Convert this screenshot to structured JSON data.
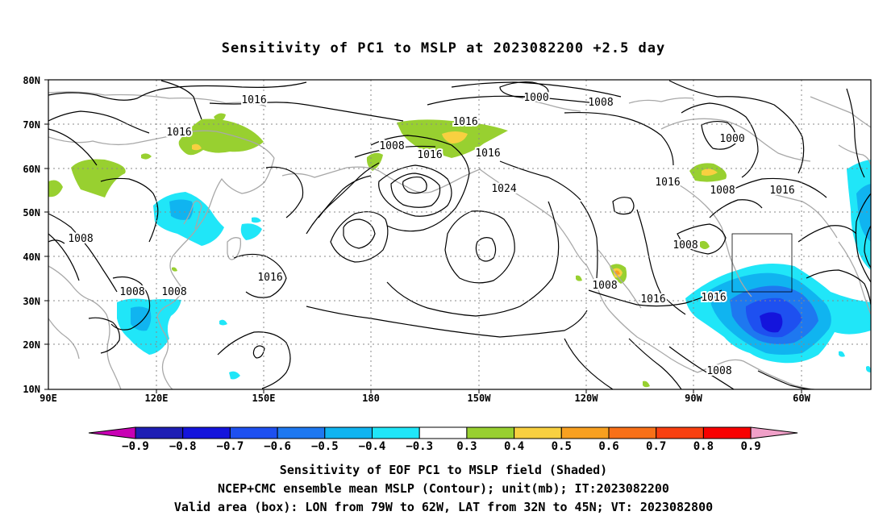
{
  "title": "Sensitivity of PC1 to MSLP at 2023082200 +2.5 day",
  "captions": [
    "Sensitivity of EOF PC1 to MSLP field (Shaded)",
    "NCEP+CMC ensemble mean MSLP (Contour); unit(mb); IT:2023082200",
    "Valid area (box): LON from 79W to 62W, LAT from 32N to 45N; VT: 2023082800"
  ],
  "axes": {
    "lat_labels": [
      "80N",
      "70N",
      "60N",
      "50N",
      "40N",
      "30N",
      "20N",
      "10N"
    ],
    "lon_labels": [
      "90E",
      "120E",
      "150E",
      "180",
      "150W",
      "120W",
      "90W",
      "60W"
    ]
  },
  "colorbar": {
    "labels": [
      "-0.9",
      "-0.8",
      "-0.7",
      "-0.6",
      "-0.5",
      "-0.4",
      "-0.3",
      "0.3",
      "0.4",
      "0.5",
      "0.6",
      "0.7",
      "0.8",
      "0.9"
    ],
    "colors": [
      "#c800b4",
      "#1e1eb4",
      "#1414dc",
      "#1e50f0",
      "#1e78f0",
      "#10b4f0",
      "#20e6f8",
      "#ffffff",
      "#98d030",
      "#f8d040",
      "#f8a020",
      "#f87018",
      "#f84010",
      "#f80000",
      "#f0a0c8"
    ]
  },
  "contour_labels": [
    "1016",
    "1000",
    "1008",
    "1016",
    "1016",
    "1008",
    "1016",
    "1024",
    "1000",
    "1016",
    "1008",
    "1016",
    "1008",
    "1016",
    "1008",
    "1008",
    "1008",
    "1016",
    "1008",
    "1016",
    "1016",
    "1008"
  ]
}
